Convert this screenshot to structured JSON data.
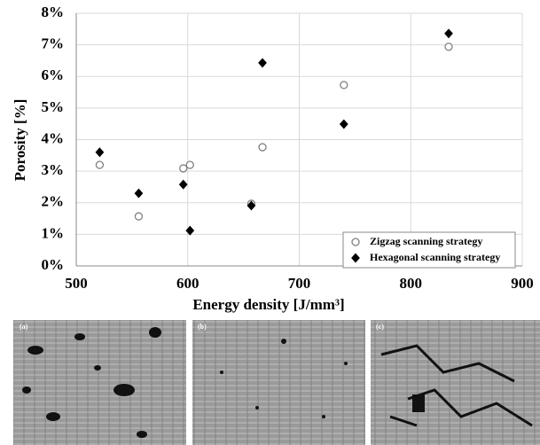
{
  "chart_data": {
    "type": "scatter",
    "xlabel": "Energy density [J/mm³]",
    "ylabel": "Porosity [%]",
    "xlim": [
      500,
      900
    ],
    "xticks": [
      500,
      600,
      700,
      800,
      900
    ],
    "ylim": [
      0,
      8
    ],
    "yticks": [
      {
        "value": 0,
        "label": "0%"
      },
      {
        "value": 1,
        "label": "1%"
      },
      {
        "value": 2,
        "label": "2%"
      },
      {
        "value": 3,
        "label": "3%"
      },
      {
        "value": 4,
        "label": "4%"
      },
      {
        "value": 5,
        "label": "5%"
      },
      {
        "value": 6,
        "label": "6%"
      },
      {
        "value": 7,
        "label": "7%"
      },
      {
        "value": 8,
        "label": "8%"
      }
    ],
    "grid": true,
    "legend": "lower right",
    "series": [
      {
        "name": "Zigzag scanning strategy",
        "color": "#808080",
        "marker": "circle",
        "filled": false,
        "x": [
          521,
          556,
          596,
          602,
          657,
          667,
          740,
          834
        ],
        "values": [
          3.2,
          1.57,
          3.09,
          3.2,
          1.97,
          3.76,
          5.73,
          6.94
        ]
      },
      {
        "name": "Hexagonal scanning strategy",
        "color": "#000000",
        "marker": "diamond",
        "filled": true,
        "x": [
          521,
          556,
          596,
          602,
          657,
          667,
          740,
          834
        ],
        "values": [
          3.6,
          2.3,
          2.58,
          1.12,
          1.91,
          6.43,
          4.49,
          7.36
        ]
      }
    ]
  },
  "images": [
    {
      "label": "(a)"
    },
    {
      "label": "(b)"
    },
    {
      "label": "(c)"
    }
  ]
}
